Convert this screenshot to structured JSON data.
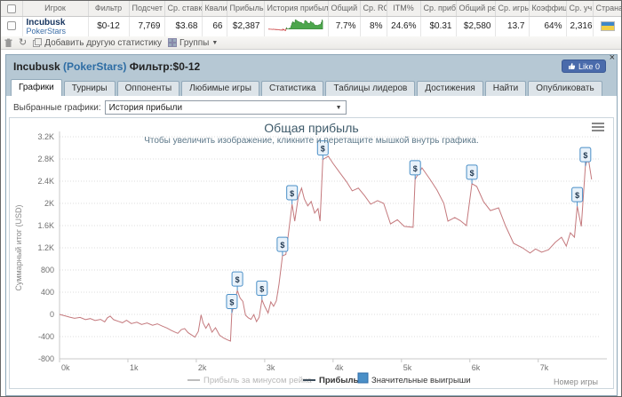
{
  "table": {
    "headers": [
      "",
      "Игрок",
      "Фильтр",
      "Подсчет",
      "Ср. ставка",
      "Квалиф",
      "Прибыль",
      "История прибыл",
      "Общий RO",
      "Ср. RO:",
      "ITM%",
      "Ср. прибы",
      "Общий рей",
      "Ср. игры",
      "Коэффициен",
      "Ср. уч",
      "Страна"
    ],
    "row": {
      "player_name": "Incubusk",
      "site": "PokerStars",
      "filter": "$0-12",
      "count": "7,769",
      "avg_stake": "$3.68",
      "qualif": "66",
      "profit": "$2,387",
      "total_roi": "7.7%",
      "avg_roi": "8%",
      "itm": "24.6%",
      "avg_profit": "$0.31",
      "total_rating": "$2,580",
      "avg_games": "13.7",
      "coefficient": "64%",
      "avg_entrants": "2,316",
      "country": "Ukraine"
    }
  },
  "toolbar": {
    "add_stat_label": "Добавить другую статистику",
    "groups_label": "Группы",
    "groups_arrow": "▼"
  },
  "panel": {
    "title_player": "Incubusk",
    "title_site": "(PokerStars)",
    "title_filter": "Фильтр:$0-12",
    "like_label": "Like 0",
    "close_glyph": "×",
    "tabs": [
      "Графики",
      "Турниры",
      "Оппоненты",
      "Любимые игры",
      "Статистика",
      "Таблицы лидеров",
      "Достижения",
      "Найти",
      "Опубликовать"
    ],
    "graph_select_label": "Выбранные графики:",
    "graph_select_value": "История прибыли",
    "graph_select_arrow": "▼"
  },
  "colors": {
    "panel_header_bg": "#b6c8d4",
    "profit_line": "#c4797d",
    "marker_blue": "#4a8fc7",
    "like_blue": "#4a6bab",
    "link_blue": "#3d6fa8",
    "sparkline_green": "#4ca64c",
    "sparkline_red": "#cc4444"
  },
  "chart_data": {
    "type": "line",
    "title": "Общая прибыль",
    "subtitle": "Чтобы увеличить изображение, кликните и перетащите мышкой внутрь графика.",
    "ylabel": "Суммарный итог (USD)",
    "xlabel": "Номер игры",
    "xlim": [
      0,
      7.9
    ],
    "ylim": [
      -800,
      3200
    ],
    "x_unit": "thousands of games",
    "ytick_values": [
      -800,
      -400,
      0,
      400,
      800,
      1200,
      1600,
      2000,
      2400,
      2800,
      3200
    ],
    "ytick_labels": [
      "-800",
      "-400",
      "0",
      "400",
      "800",
      "1.2K",
      "1.6K",
      "2K",
      "2.4K",
      "2.8K",
      "3.2K"
    ],
    "xtick_values": [
      0,
      1,
      2,
      3,
      4,
      5,
      6,
      7
    ],
    "xtick_labels": [
      "0k",
      "1k",
      "2k",
      "3k",
      "4k",
      "5k",
      "6k",
      "7k"
    ],
    "grid": "horizontal-dotted",
    "legend_position": "bottom-center",
    "series": [
      {
        "name": "Прибыль за минусом рейка",
        "enabled": false,
        "color": "#bdbdbd",
        "text_color": "#b8b8b8",
        "symbol": "dash",
        "data": []
      },
      {
        "name": "Прибыль",
        "enabled": true,
        "color": "#c4797d",
        "legend_dash_color": "#3e4e5c",
        "text_color": "#333333",
        "symbol": "dash",
        "data": [
          [
            0,
            0
          ],
          [
            0.08,
            -25
          ],
          [
            0.15,
            -50
          ],
          [
            0.22,
            -70
          ],
          [
            0.3,
            -55
          ],
          [
            0.38,
            -95
          ],
          [
            0.45,
            -75
          ],
          [
            0.52,
            -110
          ],
          [
            0.6,
            -90
          ],
          [
            0.66,
            -135
          ],
          [
            0.7,
            -60
          ],
          [
            0.74,
            -30
          ],
          [
            0.79,
            -95
          ],
          [
            0.86,
            -125
          ],
          [
            0.92,
            -150
          ],
          [
            0.98,
            -105
          ],
          [
            1.05,
            -165
          ],
          [
            1.13,
            -140
          ],
          [
            1.2,
            -180
          ],
          [
            1.28,
            -155
          ],
          [
            1.36,
            -195
          ],
          [
            1.43,
            -170
          ],
          [
            1.5,
            -210
          ],
          [
            1.57,
            -245
          ],
          [
            1.63,
            -285
          ],
          [
            1.68,
            -315
          ],
          [
            1.73,
            -340
          ],
          [
            1.78,
            -275
          ],
          [
            1.83,
            -255
          ],
          [
            1.88,
            -330
          ],
          [
            1.93,
            -370
          ],
          [
            1.98,
            -410
          ],
          [
            2.03,
            -305
          ],
          [
            2.07,
            -10
          ],
          [
            2.1,
            -155
          ],
          [
            2.14,
            -250
          ],
          [
            2.18,
            -165
          ],
          [
            2.23,
            -320
          ],
          [
            2.28,
            -240
          ],
          [
            2.34,
            -375
          ],
          [
            2.4,
            -425
          ],
          [
            2.46,
            -460
          ],
          [
            2.5,
            -480
          ],
          [
            2.52,
            25
          ],
          [
            2.56,
            205
          ],
          [
            2.6,
            430
          ],
          [
            2.64,
            295
          ],
          [
            2.68,
            235
          ],
          [
            2.72,
            -15
          ],
          [
            2.76,
            -60
          ],
          [
            2.8,
            -90
          ],
          [
            2.84,
            -5
          ],
          [
            2.88,
            -130
          ],
          [
            2.92,
            -50
          ],
          [
            2.96,
            265
          ],
          [
            3.0,
            145
          ],
          [
            3.05,
            25
          ],
          [
            3.09,
            225
          ],
          [
            3.13,
            145
          ],
          [
            3.17,
            245
          ],
          [
            3.21,
            545
          ],
          [
            3.26,
            1055
          ],
          [
            3.31,
            1080
          ],
          [
            3.35,
            1480
          ],
          [
            3.4,
            1985
          ],
          [
            3.44,
            1680
          ],
          [
            3.49,
            2105
          ],
          [
            3.54,
            2275
          ],
          [
            3.58,
            2080
          ],
          [
            3.63,
            1955
          ],
          [
            3.68,
            2035
          ],
          [
            3.73,
            1825
          ],
          [
            3.78,
            1905
          ],
          [
            3.81,
            1680
          ],
          [
            3.85,
            2790
          ],
          [
            3.93,
            2850
          ],
          [
            4.0,
            2720
          ],
          [
            4.1,
            2550
          ],
          [
            4.2,
            2385
          ],
          [
            4.28,
            2225
          ],
          [
            4.37,
            2275
          ],
          [
            4.46,
            2140
          ],
          [
            4.55,
            1985
          ],
          [
            4.65,
            2050
          ],
          [
            4.74,
            2000
          ],
          [
            4.84,
            1630
          ],
          [
            4.94,
            1705
          ],
          [
            5.04,
            1585
          ],
          [
            5.17,
            1570
          ],
          [
            5.2,
            2435
          ],
          [
            5.3,
            2640
          ],
          [
            5.42,
            2430
          ],
          [
            5.52,
            2240
          ],
          [
            5.62,
            2000
          ],
          [
            5.68,
            1680
          ],
          [
            5.78,
            1745
          ],
          [
            5.86,
            1690
          ],
          [
            5.95,
            1600
          ],
          [
            6.03,
            2355
          ],
          [
            6.1,
            2305
          ],
          [
            6.2,
            2030
          ],
          [
            6.3,
            1870
          ],
          [
            6.42,
            1920
          ],
          [
            6.52,
            1600
          ],
          [
            6.64,
            1280
          ],
          [
            6.77,
            1200
          ],
          [
            6.88,
            1105
          ],
          [
            6.96,
            1180
          ],
          [
            7.05,
            1120
          ],
          [
            7.15,
            1165
          ],
          [
            7.25,
            1300
          ],
          [
            7.34,
            1390
          ],
          [
            7.41,
            1230
          ],
          [
            7.47,
            1470
          ],
          [
            7.53,
            1390
          ],
          [
            7.57,
            1950
          ],
          [
            7.63,
            1585
          ],
          [
            7.69,
            2670
          ],
          [
            7.73,
            2830
          ],
          [
            7.78,
            2430
          ]
        ]
      },
      {
        "name": "Значительные выигрыши",
        "enabled": true,
        "type": "markers",
        "color": "#4a8fc7",
        "fill": "#e9f2fa",
        "text_color": "#333333",
        "symbol": "square",
        "marker_glyph": "$",
        "points": [
          [
            2.52,
            25
          ],
          [
            2.6,
            430
          ],
          [
            2.96,
            265
          ],
          [
            3.26,
            1055
          ],
          [
            3.4,
            1985
          ],
          [
            3.85,
            2790
          ],
          [
            5.2,
            2435
          ],
          [
            6.03,
            2355
          ],
          [
            7.57,
            1950
          ],
          [
            7.69,
            2670
          ]
        ]
      }
    ]
  }
}
